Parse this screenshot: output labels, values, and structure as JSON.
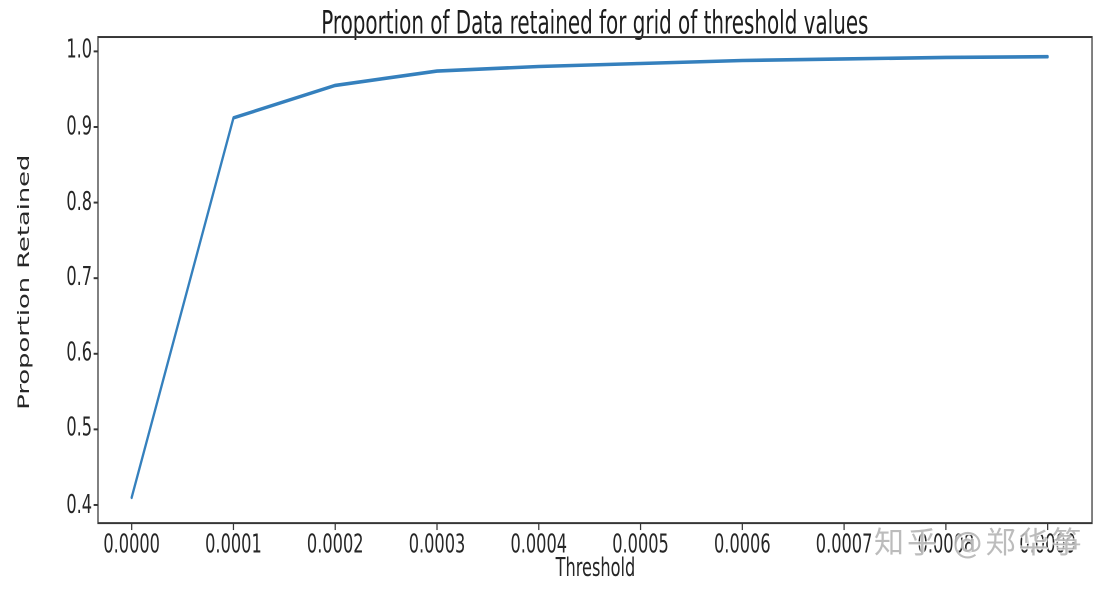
{
  "chart_data": {
    "type": "line",
    "title": "Proportion of Data retained for grid of threshold values",
    "xlabel": "Threshold",
    "ylabel": "Proportion Retained",
    "x": [
      0.0,
      0.0001,
      0.0002,
      0.0003,
      0.0004,
      0.0005,
      0.0006,
      0.0007,
      0.0008,
      0.0009
    ],
    "y": [
      0.41,
      0.912,
      0.955,
      0.974,
      0.98,
      0.984,
      0.988,
      0.99,
      0.992,
      0.993
    ],
    "x_ticks": [
      0.0,
      0.0001,
      0.0002,
      0.0003,
      0.0004,
      0.0005,
      0.0006,
      0.0007,
      0.0008,
      0.0009
    ],
    "x_tick_labels": [
      "0.0000",
      "0.0001",
      "0.0002",
      "0.0003",
      "0.0004",
      "0.0005",
      "0.0006",
      "0.0007",
      "0.0008",
      "0.0009"
    ],
    "y_ticks": [
      0.4,
      0.5,
      0.6,
      0.7,
      0.8,
      0.9,
      1.0
    ],
    "y_tick_labels": [
      "0.4",
      "0.5",
      "0.6",
      "0.7",
      "0.8",
      "0.9",
      "1.0"
    ],
    "xlim": [
      -3.31e-05,
      0.0009436
    ],
    "ylim": [
      0.376,
      1.019
    ],
    "grid": false,
    "legend": null,
    "line_color": "#3580bd",
    "spine_color": "#363636",
    "text_color": "#262626"
  },
  "watermark": {
    "text": "知乎 @郑华筝"
  }
}
